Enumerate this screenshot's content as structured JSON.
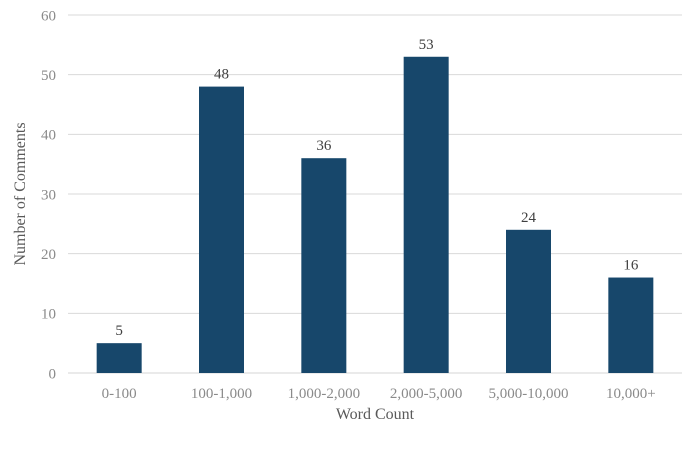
{
  "chart_data": {
    "type": "bar",
    "title": "",
    "categories": [
      "0-100",
      "100-1,000",
      "1,000-2,000",
      "2,000-5,000",
      "5,000-10,000",
      "10,000+"
    ],
    "values": [
      5,
      48,
      36,
      53,
      24,
      16
    ],
    "data_labels": [
      "5",
      "48",
      "36",
      "53",
      "24",
      "16"
    ],
    "xlabel": "Word Count",
    "ylabel": "Number of Comments",
    "ylim": [
      0,
      60
    ],
    "yticks": [
      0,
      10,
      20,
      30,
      40,
      50,
      60
    ],
    "grid": true,
    "legend": false,
    "colors": {
      "bar": "#17476b",
      "gridline": "#d9d9d9",
      "axis_line": "#d6d6d6",
      "tick_label": "#8a8a8a",
      "axis_title": "#595959",
      "data_label": "#404040",
      "background": "#ffffff"
    }
  }
}
